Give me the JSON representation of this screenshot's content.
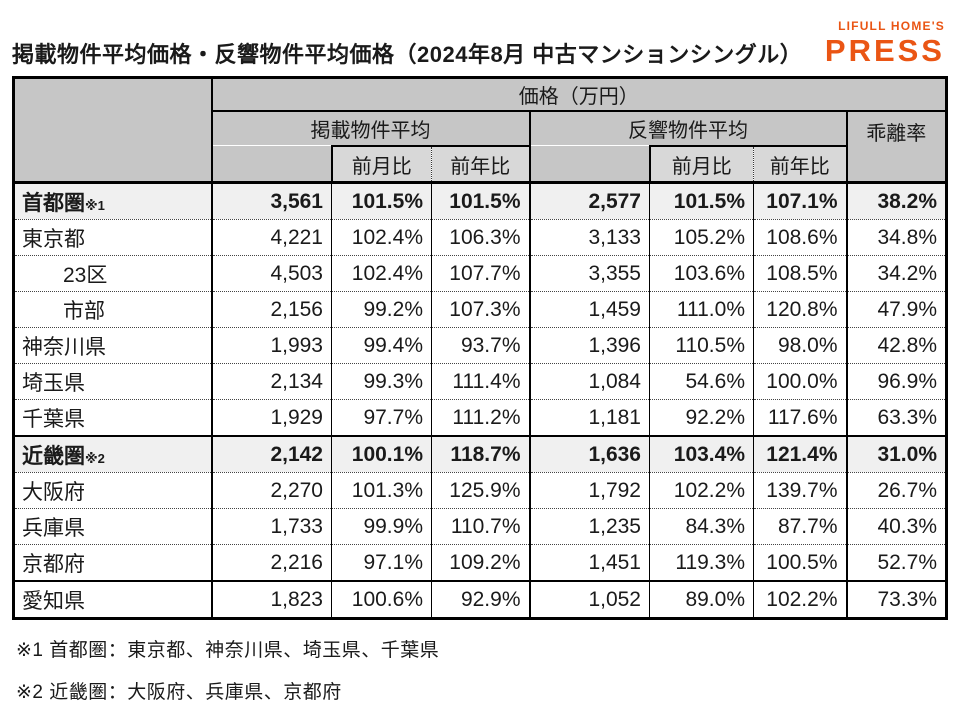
{
  "title": "掲載物件平均価格・反響物件平均価格（2024年8月 中古マンションシングル）",
  "logo": {
    "brand": "LIFULL HOME'S",
    "product": "PRESS",
    "color": "#EA5514"
  },
  "chart_data": {
    "type": "table",
    "title": "掲載物件平均価格・反響物件平均価格（2024年8月 中古マンションシングル）",
    "unit_header": "価格（万円）",
    "groups": {
      "listed": "掲載物件平均",
      "response": "反響物件平均",
      "divergence": "乖離率"
    },
    "sub_headers": {
      "mom": "前月比",
      "yoy": "前年比"
    },
    "rows": [
      {
        "label": "首都圏",
        "note": "※1",
        "type": "region",
        "values": [
          "3,561",
          "101.5%",
          "101.5%",
          "2,577",
          "101.5%",
          "107.1%",
          "38.2%"
        ]
      },
      {
        "label": "東京都",
        "type": "pref",
        "values": [
          "4,221",
          "102.4%",
          "106.3%",
          "3,133",
          "105.2%",
          "108.6%",
          "34.8%"
        ]
      },
      {
        "label": "23区",
        "type": "sub",
        "values": [
          "4,503",
          "102.4%",
          "107.7%",
          "3,355",
          "103.6%",
          "108.5%",
          "34.2%"
        ]
      },
      {
        "label": "市部",
        "type": "sub",
        "values": [
          "2,156",
          "99.2%",
          "107.3%",
          "1,459",
          "111.0%",
          "120.8%",
          "47.9%"
        ]
      },
      {
        "label": "神奈川県",
        "type": "pref",
        "values": [
          "1,993",
          "99.4%",
          "93.7%",
          "1,396",
          "110.5%",
          "98.0%",
          "42.8%"
        ]
      },
      {
        "label": "埼玉県",
        "type": "pref",
        "values": [
          "2,134",
          "99.3%",
          "111.4%",
          "1,084",
          "54.6%",
          "100.0%",
          "96.9%"
        ]
      },
      {
        "label": "千葉県",
        "type": "pref",
        "values": [
          "1,929",
          "97.7%",
          "111.2%",
          "1,181",
          "92.2%",
          "117.6%",
          "63.3%"
        ]
      },
      {
        "label": "近畿圏",
        "note": "※2",
        "type": "region",
        "thick_top": true,
        "values": [
          "2,142",
          "100.1%",
          "118.7%",
          "1,636",
          "103.4%",
          "121.4%",
          "31.0%"
        ]
      },
      {
        "label": "大阪府",
        "type": "pref",
        "values": [
          "2,270",
          "101.3%",
          "125.9%",
          "1,792",
          "102.2%",
          "139.7%",
          "26.7%"
        ]
      },
      {
        "label": "兵庫県",
        "type": "pref",
        "values": [
          "1,733",
          "99.9%",
          "110.7%",
          "1,235",
          "84.3%",
          "87.7%",
          "40.3%"
        ]
      },
      {
        "label": "京都府",
        "type": "pref",
        "values": [
          "2,216",
          "97.1%",
          "109.2%",
          "1,451",
          "119.3%",
          "100.5%",
          "52.7%"
        ]
      },
      {
        "label": "愛知県",
        "type": "pref",
        "thick_top": true,
        "values": [
          "1,823",
          "100.6%",
          "92.9%",
          "1,052",
          "89.0%",
          "102.2%",
          "73.3%"
        ]
      }
    ]
  },
  "footnotes": [
    "※1 首都圏：東京都、神奈川県、埼玉県、千葉県",
    "※2 近畿圏：大阪府、兵庫県、京都府"
  ]
}
